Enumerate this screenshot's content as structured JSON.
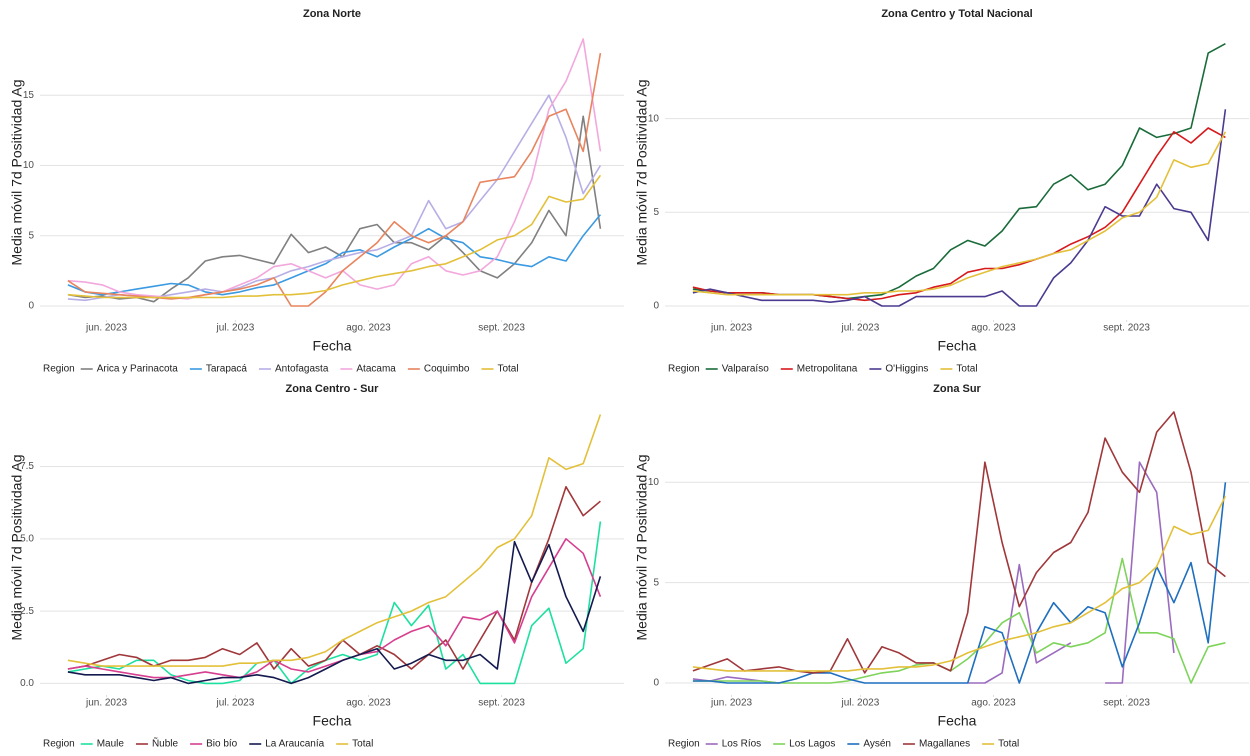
{
  "chart_data": [
    {
      "type": "line",
      "title": "Zona Norte",
      "x_label": "Fecha",
      "y_label": "Media móvil 7d Positividad Ag",
      "legend_title": "Region",
      "legend": "bottom",
      "grid": true,
      "x": [
        143,
        147,
        151,
        155,
        159,
        163,
        167,
        171,
        175,
        179,
        183,
        187,
        191,
        195,
        199,
        203,
        207,
        211,
        215,
        219,
        223,
        227,
        231,
        235,
        239,
        243,
        247,
        251,
        255,
        259,
        263,
        267
      ],
      "xlim": [
        136.5,
        272.5
      ],
      "xticks": [
        {
          "value": 152,
          "label": "jun. 2023"
        },
        {
          "value": 182,
          "label": "jul. 2023"
        },
        {
          "value": 213,
          "label": "ago. 2023"
        },
        {
          "value": 244,
          "label": "sept. 2023"
        }
      ],
      "ylim": [
        -1,
        20
      ],
      "yticks": [
        0,
        5,
        10,
        15
      ],
      "series": [
        {
          "name": "Arica y Parinacota",
          "color": "#808080",
          "values": [
            0.8,
            0.6,
            0.7,
            0.5,
            0.6,
            0.3,
            1.2,
            2.0,
            3.2,
            3.5,
            3.6,
            3.3,
            3.0,
            5.1,
            3.8,
            4.2,
            3.5,
            5.5,
            5.8,
            4.5,
            4.5,
            4.0,
            5.0,
            3.8,
            2.5,
            2.0,
            3.0,
            4.5,
            6.8,
            5.0,
            13.5,
            5.5
          ]
        },
        {
          "name": "Tarapacá",
          "color": "#3b9ae1",
          "values": [
            1.5,
            1.0,
            0.8,
            1.0,
            1.2,
            1.4,
            1.6,
            1.5,
            1.0,
            0.8,
            1.0,
            1.3,
            1.5,
            2.0,
            2.5,
            3.0,
            3.8,
            4.0,
            3.5,
            4.2,
            4.8,
            5.5,
            4.8,
            4.5,
            3.5,
            3.3,
            3.0,
            2.8,
            3.5,
            3.2,
            5.0,
            6.5
          ]
        },
        {
          "name": "Antofagasta",
          "color": "#b8aee6",
          "values": [
            0.5,
            0.4,
            0.6,
            0.8,
            0.7,
            0.6,
            0.8,
            1.0,
            1.2,
            1.0,
            1.3,
            1.8,
            2.0,
            2.5,
            2.8,
            3.2,
            3.5,
            3.8,
            4.0,
            4.5,
            5.0,
            7.5,
            5.5,
            6.0,
            7.5,
            9.0,
            11.0,
            13.0,
            15.0,
            12.0,
            8.0,
            10.0
          ]
        },
        {
          "name": "Atacama",
          "color": "#f2a8dc",
          "values": [
            1.8,
            1.7,
            1.5,
            1.0,
            0.8,
            0.7,
            0.6,
            0.5,
            0.8,
            1.0,
            1.5,
            2.0,
            2.8,
            3.0,
            2.5,
            2.0,
            2.5,
            1.5,
            1.2,
            1.5,
            3.0,
            3.5,
            2.5,
            2.2,
            2.5,
            3.5,
            6.0,
            9.0,
            14.0,
            16.0,
            19.0,
            11.0
          ]
        },
        {
          "name": "Coquimbo",
          "color": "#e8845e",
          "values": [
            1.8,
            1.0,
            0.9,
            0.8,
            0.7,
            0.6,
            0.5,
            0.6,
            0.8,
            1.0,
            1.2,
            1.5,
            2.0,
            0.0,
            0.0,
            1.0,
            2.5,
            3.5,
            4.5,
            6.0,
            5.0,
            4.5,
            5.0,
            6.0,
            8.8,
            9.0,
            9.2,
            11.0,
            13.5,
            14.0,
            11.0,
            18.0
          ]
        },
        {
          "name": "Total",
          "color": "#e3c03a",
          "values": [
            0.8,
            0.7,
            0.6,
            0.6,
            0.6,
            0.6,
            0.6,
            0.6,
            0.6,
            0.6,
            0.7,
            0.7,
            0.8,
            0.8,
            0.9,
            1.1,
            1.5,
            1.8,
            2.1,
            2.3,
            2.5,
            2.8,
            3.0,
            3.5,
            4.0,
            4.7,
            5.0,
            5.8,
            7.8,
            7.4,
            7.6,
            9.3
          ]
        }
      ]
    },
    {
      "type": "line",
      "title": "Zona Centro y Total Nacional",
      "x_label": "Fecha",
      "y_label": "Media móvil 7d Positividad Ag",
      "legend_title": "Region",
      "legend": "bottom",
      "grid": true,
      "x": [
        143,
        147,
        151,
        155,
        159,
        163,
        167,
        171,
        175,
        179,
        183,
        187,
        191,
        195,
        199,
        203,
        207,
        211,
        215,
        219,
        223,
        227,
        231,
        235,
        239,
        243,
        247,
        251,
        255,
        259,
        263,
        267
      ],
      "xlim": [
        136.5,
        272.5
      ],
      "xticks": [
        {
          "value": 152,
          "label": "jun. 2023"
        },
        {
          "value": 182,
          "label": "jul. 2023"
        },
        {
          "value": 213,
          "label": "ago. 2023"
        },
        {
          "value": 244,
          "label": "sept. 2023"
        }
      ],
      "ylim": [
        -0.75,
        15
      ],
      "yticks": [
        0,
        5,
        10
      ],
      "series": [
        {
          "name": "Valparaíso",
          "color": "#1a6b3a",
          "values": [
            0.9,
            0.8,
            0.7,
            0.7,
            0.7,
            0.6,
            0.6,
            0.6,
            0.5,
            0.4,
            0.5,
            0.6,
            1.0,
            1.6,
            2.0,
            3.0,
            3.5,
            3.2,
            4.0,
            5.2,
            5.3,
            6.5,
            7.0,
            6.2,
            6.5,
            7.5,
            9.5,
            9.0,
            9.2,
            9.5,
            13.5,
            14.0
          ]
        },
        {
          "name": "Metropolitana",
          "color": "#d7191c",
          "values": [
            1.0,
            0.8,
            0.7,
            0.7,
            0.7,
            0.6,
            0.6,
            0.6,
            0.5,
            0.4,
            0.3,
            0.4,
            0.6,
            0.7,
            1.0,
            1.2,
            1.8,
            2.0,
            2.0,
            2.2,
            2.5,
            2.8,
            3.3,
            3.7,
            4.2,
            5.0,
            6.5,
            8.0,
            9.3,
            8.7,
            9.5,
            9.0
          ]
        },
        {
          "name": "O'Higgins",
          "color": "#4b3a8f",
          "values": [
            0.7,
            0.9,
            0.7,
            0.5,
            0.3,
            0.3,
            0.3,
            0.3,
            0.2,
            0.3,
            0.5,
            0.0,
            0.0,
            0.5,
            0.5,
            0.5,
            0.5,
            0.5,
            0.8,
            0.0,
            0.0,
            1.5,
            2.3,
            3.5,
            5.3,
            4.8,
            4.8,
            6.5,
            5.2,
            5.0,
            3.5,
            10.5
          ]
        },
        {
          "name": "Total",
          "color": "#e3c03a",
          "values": [
            0.8,
            0.7,
            0.6,
            0.6,
            0.6,
            0.6,
            0.6,
            0.6,
            0.6,
            0.6,
            0.7,
            0.7,
            0.8,
            0.8,
            0.9,
            1.1,
            1.5,
            1.8,
            2.1,
            2.3,
            2.5,
            2.8,
            3.0,
            3.5,
            4.0,
            4.7,
            5.0,
            5.8,
            7.8,
            7.4,
            7.6,
            9.3
          ]
        }
      ]
    },
    {
      "type": "line",
      "title": "Zona Centro - Sur",
      "x_label": "Fecha",
      "y_label": "Media móvil 7d Positividad Ag",
      "legend_title": "Region",
      "legend": "bottom",
      "grid": true,
      "x": [
        143,
        147,
        151,
        155,
        159,
        163,
        167,
        171,
        175,
        179,
        183,
        187,
        191,
        195,
        199,
        203,
        207,
        211,
        215,
        219,
        223,
        227,
        231,
        235,
        239,
        243,
        247,
        251,
        255,
        259,
        263,
        267
      ],
      "xlim": [
        136.5,
        272.5
      ],
      "xticks": [
        {
          "value": 152,
          "label": "jun. 2023"
        },
        {
          "value": 182,
          "label": "jul. 2023"
        },
        {
          "value": 213,
          "label": "ago. 2023"
        },
        {
          "value": 244,
          "label": "sept. 2023"
        }
      ],
      "ylim": [
        -0.4,
        9.8
      ],
      "yticks": [
        {
          "value": 0,
          "label": "0.0"
        },
        {
          "value": 2.5,
          "label": "2.5"
        },
        {
          "value": 5,
          "label": "5.0"
        },
        {
          "value": 7.5,
          "label": "7.5"
        }
      ],
      "series": [
        {
          "name": "Maule",
          "color": "#1de0a0",
          "values": [
            0.4,
            0.5,
            0.6,
            0.5,
            0.8,
            0.8,
            0.3,
            0.1,
            0.0,
            0.0,
            0.1,
            0.7,
            0.8,
            0.0,
            0.5,
            0.8,
            1.0,
            0.8,
            1.0,
            2.8,
            2.0,
            2.7,
            0.5,
            1.0,
            0.0,
            0.0,
            0.0,
            2.0,
            2.6,
            0.7,
            1.2,
            5.6
          ]
        },
        {
          "name": "Ñuble",
          "color": "#a0373a",
          "values": [
            0.5,
            0.6,
            0.8,
            1.0,
            0.9,
            0.6,
            0.8,
            0.8,
            0.9,
            1.2,
            1.0,
            1.4,
            0.5,
            1.2,
            0.6,
            0.8,
            1.5,
            1.0,
            1.3,
            1.0,
            0.5,
            1.0,
            1.5,
            0.5,
            1.5,
            2.5,
            1.5,
            3.5,
            5.0,
            6.8,
            5.8,
            6.3
          ]
        },
        {
          "name": "Bio bío",
          "color": "#d63f8f",
          "values": [
            0.5,
            0.6,
            0.5,
            0.4,
            0.3,
            0.2,
            0.2,
            0.3,
            0.4,
            0.3,
            0.2,
            0.4,
            0.8,
            0.5,
            0.4,
            0.6,
            0.8,
            1.0,
            1.1,
            1.5,
            1.8,
            2.0,
            1.3,
            2.3,
            2.2,
            2.5,
            1.4,
            3.0,
            4.0,
            5.0,
            4.5,
            3.0
          ]
        },
        {
          "name": "La Araucanía",
          "color": "#141a4f",
          "values": [
            0.4,
            0.3,
            0.3,
            0.3,
            0.2,
            0.1,
            0.2,
            0.0,
            0.1,
            0.2,
            0.2,
            0.3,
            0.2,
            0.0,
            0.2,
            0.5,
            0.8,
            1.0,
            1.2,
            0.5,
            0.7,
            1.0,
            0.8,
            0.8,
            1.0,
            0.5,
            4.9,
            3.5,
            4.8,
            3.0,
            1.8,
            3.7
          ]
        },
        {
          "name": "Total",
          "color": "#e3c03a",
          "values": [
            0.8,
            0.7,
            0.6,
            0.6,
            0.6,
            0.6,
            0.6,
            0.6,
            0.6,
            0.6,
            0.7,
            0.7,
            0.8,
            0.8,
            0.9,
            1.1,
            1.5,
            1.8,
            2.1,
            2.3,
            2.5,
            2.8,
            3.0,
            3.5,
            4.0,
            4.7,
            5.0,
            5.8,
            7.8,
            7.4,
            7.6,
            9.3
          ]
        }
      ]
    },
    {
      "type": "line",
      "title": "Zona Sur",
      "x_label": "Fecha",
      "y_label": "Media móvil 7d Positividad Ag",
      "legend_title": "Region",
      "legend": "bottom",
      "grid": true,
      "x": [
        143,
        147,
        151,
        155,
        159,
        163,
        167,
        171,
        175,
        179,
        183,
        187,
        191,
        195,
        199,
        203,
        207,
        211,
        215,
        219,
        223,
        227,
        231,
        235,
        239,
        243,
        247,
        251,
        255,
        259,
        263,
        267
      ],
      "xlim": [
        136.5,
        272.5
      ],
      "xticks": [
        {
          "value": 152,
          "label": "jun. 2023"
        },
        {
          "value": 182,
          "label": "jul. 2023"
        },
        {
          "value": 213,
          "label": "ago. 2023"
        },
        {
          "value": 244,
          "label": "sept. 2023"
        }
      ],
      "ylim": [
        -0.6,
        14.1
      ],
      "yticks": [
        0,
        5,
        10
      ],
      "series": [
        {
          "name": "Los Ríos",
          "color": "#9b6bbf",
          "values": [
            0.2,
            0.1,
            0.3,
            0.2,
            0.1,
            0.0,
            null,
            null,
            null,
            null,
            null,
            null,
            null,
            null,
            null,
            null,
            0.0,
            0.0,
            0.5,
            5.9,
            1.0,
            1.5,
            2.0,
            null,
            0.0,
            0.0,
            11.0,
            9.5,
            1.5,
            null,
            null,
            null
          ]
        },
        {
          "name": "Los Lagos",
          "color": "#7ed35a",
          "values": [
            0.1,
            0.1,
            0.1,
            0.1,
            0.1,
            0.0,
            0.0,
            0.0,
            0.0,
            0.1,
            0.3,
            0.5,
            0.6,
            0.9,
            1.0,
            0.6,
            1.2,
            2.0,
            3.0,
            3.5,
            1.5,
            2.0,
            1.8,
            2.0,
            2.5,
            6.2,
            2.5,
            2.5,
            2.2,
            0.0,
            1.8,
            2.0
          ]
        },
        {
          "name": "Aysén",
          "color": "#1f6fbf",
          "values": [
            0.1,
            0.1,
            0.0,
            0.0,
            0.0,
            0.0,
            0.2,
            0.5,
            0.5,
            0.2,
            0.0,
            0.0,
            0.0,
            0.0,
            0.0,
            0.0,
            0.0,
            2.8,
            2.5,
            0.0,
            2.5,
            4.0,
            3.0,
            3.8,
            3.5,
            0.8,
            3.0,
            5.8,
            4.0,
            6.0,
            2.0,
            10.0
          ]
        },
        {
          "name": "Magallanes",
          "color": "#a0373a",
          "values": [
            0.6,
            0.9,
            1.2,
            0.6,
            0.7,
            0.8,
            0.6,
            0.5,
            0.6,
            2.2,
            0.5,
            1.8,
            1.5,
            1.0,
            1.0,
            0.6,
            3.5,
            11.0,
            7.0,
            3.8,
            5.5,
            6.5,
            7.0,
            8.5,
            12.2,
            10.5,
            9.5,
            12.5,
            13.5,
            10.5,
            6.0,
            5.3
          ]
        },
        {
          "name": "Total",
          "color": "#e3c03a",
          "values": [
            0.8,
            0.7,
            0.6,
            0.6,
            0.6,
            0.6,
            0.6,
            0.6,
            0.6,
            0.6,
            0.7,
            0.7,
            0.8,
            0.8,
            0.9,
            1.1,
            1.5,
            1.8,
            2.1,
            2.3,
            2.5,
            2.8,
            3.0,
            3.5,
            4.0,
            4.7,
            5.0,
            5.8,
            7.8,
            7.4,
            7.6,
            9.3
          ]
        }
      ]
    }
  ]
}
